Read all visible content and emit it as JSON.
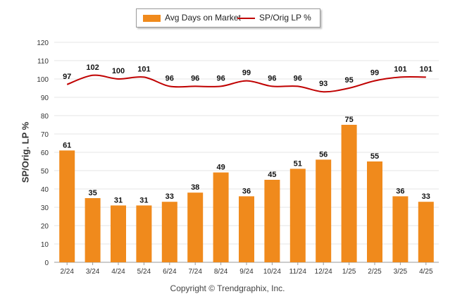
{
  "chart_data": {
    "type": "bar",
    "categories": [
      "2/24",
      "3/24",
      "4/24",
      "5/24",
      "6/24",
      "7/24",
      "8/24",
      "9/24",
      "10/24",
      "11/24",
      "12/24",
      "1/25",
      "2/25",
      "3/25",
      "4/25"
    ],
    "series": [
      {
        "name": "Avg Days on Market",
        "type": "bar",
        "color": "#f08a1c",
        "values": [
          61,
          35,
          31,
          31,
          33,
          38,
          49,
          36,
          45,
          51,
          56,
          75,
          55,
          36,
          33
        ]
      },
      {
        "name": "SP/Orig LP %",
        "type": "line",
        "color": "#c00000",
        "values": [
          97,
          102,
          100,
          101,
          96,
          96,
          96,
          99,
          96,
          96,
          93,
          95,
          99,
          101,
          101
        ]
      }
    ],
    "ylabel": "SP/Orig. LP %",
    "ylim": [
      0,
      120
    ],
    "yticks": [
      0,
      10,
      20,
      30,
      40,
      50,
      60,
      70,
      80,
      90,
      100,
      110,
      120
    ],
    "grid": true,
    "legend_position": "top-center"
  },
  "footer": {
    "copyright": "Copyright © Trendgraphix, Inc."
  }
}
